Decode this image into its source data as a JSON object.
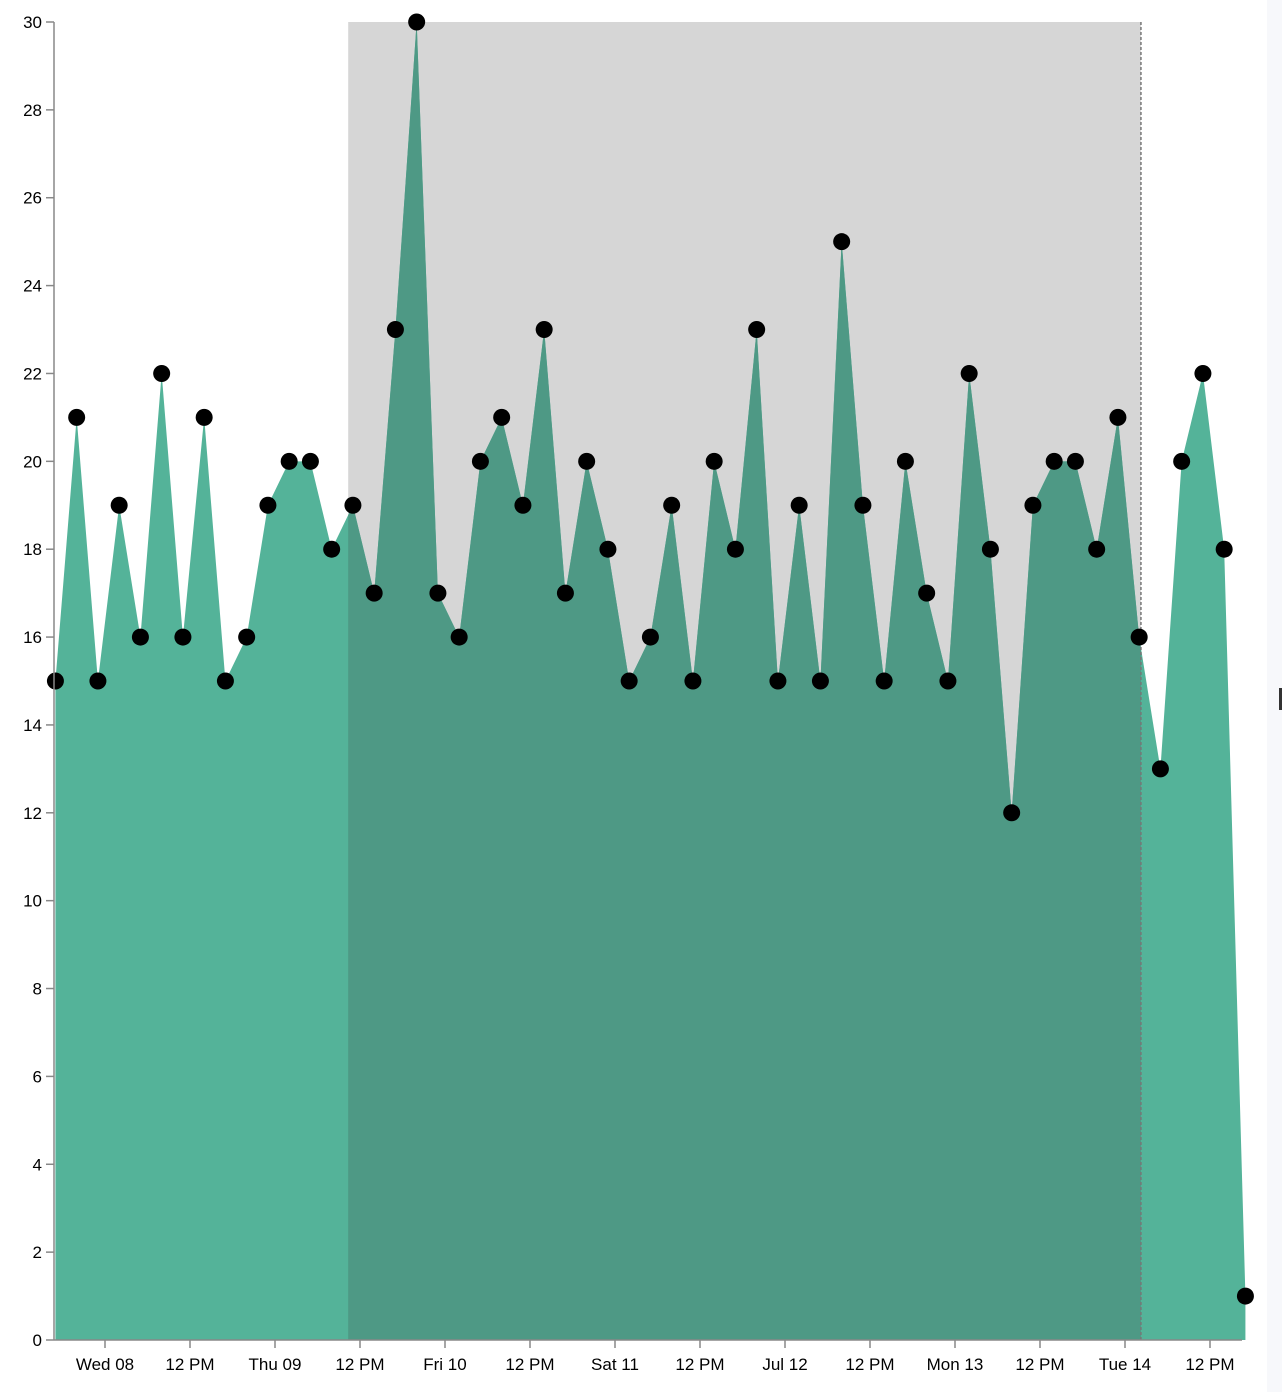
{
  "chart_data": {
    "type": "area",
    "marker": "circle",
    "colors": {
      "area": "#54b399",
      "area_in_brush": "#4e9985",
      "brush": "#d6d6d6",
      "points": "#000000"
    },
    "x": [
      "2020-07-07T17:00",
      "2020-07-07T20:00",
      "2020-07-07T23:00",
      "2020-07-08T02:00",
      "2020-07-08T05:00",
      "2020-07-08T08:00",
      "2020-07-08T11:00",
      "2020-07-08T14:00",
      "2020-07-08T17:00",
      "2020-07-08T20:00",
      "2020-07-08T23:00",
      "2020-07-09T02:00",
      "2020-07-09T05:00",
      "2020-07-09T08:00",
      "2020-07-09T11:00",
      "2020-07-09T14:00",
      "2020-07-09T17:00",
      "2020-07-09T20:00",
      "2020-07-09T23:00",
      "2020-07-10T02:00",
      "2020-07-10T05:00",
      "2020-07-10T08:00",
      "2020-07-10T11:00",
      "2020-07-10T14:00",
      "2020-07-10T17:00",
      "2020-07-10T20:00",
      "2020-07-10T23:00",
      "2020-07-11T02:00",
      "2020-07-11T05:00",
      "2020-07-11T08:00",
      "2020-07-11T11:00",
      "2020-07-11T14:00",
      "2020-07-11T17:00",
      "2020-07-11T20:00",
      "2020-07-11T23:00",
      "2020-07-12T02:00",
      "2020-07-12T05:00",
      "2020-07-12T08:00",
      "2020-07-12T11:00",
      "2020-07-12T14:00",
      "2020-07-12T17:00",
      "2020-07-12T20:00",
      "2020-07-12T23:00",
      "2020-07-13T02:00",
      "2020-07-13T05:00",
      "2020-07-13T08:00",
      "2020-07-13T11:00",
      "2020-07-13T14:00",
      "2020-07-13T17:00",
      "2020-07-13T20:00",
      "2020-07-13T23:00",
      "2020-07-14T02:00",
      "2020-07-14T05:00",
      "2020-07-14T08:00",
      "2020-07-14T11:00",
      "2020-07-14T14:00",
      "2020-07-14T17:00"
    ],
    "y": [
      15,
      21,
      15,
      19,
      16,
      22,
      16,
      21,
      15,
      16,
      19,
      20,
      20,
      18,
      19,
      17,
      23,
      30,
      17,
      16,
      20,
      21,
      19,
      23,
      17,
      20,
      18,
      15,
      16,
      19,
      15,
      20,
      18,
      23,
      15,
      19,
      15,
      25,
      19,
      15,
      20,
      17,
      15,
      22,
      18,
      12,
      19,
      20,
      20,
      18,
      21,
      16,
      13,
      20,
      22,
      18,
      1
    ],
    "brush_selection": [
      "2020-07-09T10:20",
      "2020-07-14T02:15"
    ],
    "ylim": [
      0,
      30
    ],
    "y_ticks": [
      "0",
      "2",
      "4",
      "6",
      "8",
      "10",
      "12",
      "14",
      "16",
      "18",
      "20",
      "22",
      "24",
      "26",
      "28",
      "30"
    ],
    "x_ticks": [
      {
        "t": "2020-07-08T00:00",
        "label": "Wed 08"
      },
      {
        "t": "2020-07-08T12:00",
        "label": "12 PM"
      },
      {
        "t": "2020-07-09T00:00",
        "label": "Thu 09"
      },
      {
        "t": "2020-07-09T12:00",
        "label": "12 PM"
      },
      {
        "t": "2020-07-10T00:00",
        "label": "Fri 10"
      },
      {
        "t": "2020-07-10T12:00",
        "label": "12 PM"
      },
      {
        "t": "2020-07-11T00:00",
        "label": "Sat 11"
      },
      {
        "t": "2020-07-11T12:00",
        "label": "12 PM"
      },
      {
        "t": "2020-07-12T00:00",
        "label": "Jul 12"
      },
      {
        "t": "2020-07-12T12:00",
        "label": "12 PM"
      },
      {
        "t": "2020-07-13T00:00",
        "label": "Mon 13"
      },
      {
        "t": "2020-07-13T12:00",
        "label": "12 PM"
      },
      {
        "t": "2020-07-14T00:00",
        "label": "Tue 14"
      },
      {
        "t": "2020-07-14T12:00",
        "label": "12 PM"
      }
    ],
    "grid": false,
    "legend": "none"
  }
}
